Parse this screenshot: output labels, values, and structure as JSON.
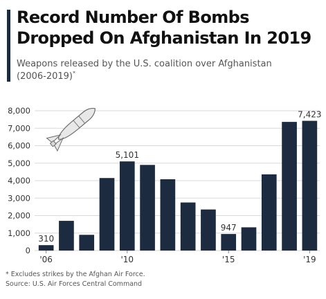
{
  "header": {
    "title_line1": "Record Number Of Bombs",
    "title_line2": "Dropped On Afghanistan In 2019",
    "subtitle_line1": "Weapons released by the U.S. coalition over Afghanistan",
    "subtitle_line2": "(2006-2019)",
    "subtitle_mark": "*"
  },
  "footer": {
    "footnote": "* Excludes strikes by the Afghan Air Force.",
    "source": "Source: U.S. Air Forces Central Command"
  },
  "icons": {
    "chart_decoration": "bomb-icon"
  },
  "colors": {
    "bar": "#1d2b40",
    "accent": "#1d2b40",
    "grid": "#d9d9d9",
    "text": "#333333"
  },
  "chart_data": {
    "type": "bar",
    "title": "Record Number Of Bombs Dropped On Afghanistan In 2019",
    "subtitle": "Weapons released by the U.S. coalition over Afghanistan (2006-2019)*",
    "xlabel": "",
    "ylabel": "",
    "categories": [
      "2006",
      "2007",
      "2008",
      "2009",
      "2010",
      "2011",
      "2012",
      "2013",
      "2014",
      "2015",
      "2016",
      "2017",
      "2018",
      "2019"
    ],
    "values": [
      310,
      1700,
      900,
      4150,
      5101,
      4900,
      4080,
      2750,
      2350,
      947,
      1330,
      4360,
      7362,
      7423
    ],
    "x_tick_labels": [
      {
        "index": 0,
        "label": "'06"
      },
      {
        "index": 4,
        "label": "'10"
      },
      {
        "index": 9,
        "label": "'15"
      },
      {
        "index": 13,
        "label": "'19"
      }
    ],
    "data_labels": [
      {
        "index": 0,
        "label": "310"
      },
      {
        "index": 4,
        "label": "5,101"
      },
      {
        "index": 9,
        "label": "947"
      },
      {
        "index": 13,
        "label": "7,423"
      }
    ],
    "y_ticks": [
      0,
      1000,
      2000,
      3000,
      4000,
      5000,
      6000,
      7000,
      8000
    ],
    "y_tick_labels": [
      "0",
      "1,000",
      "2,000",
      "3,000",
      "4,000",
      "5,000",
      "6,000",
      "7,000",
      "8,000"
    ],
    "ylim": [
      0,
      8000
    ],
    "grid": true,
    "legend": "none"
  }
}
